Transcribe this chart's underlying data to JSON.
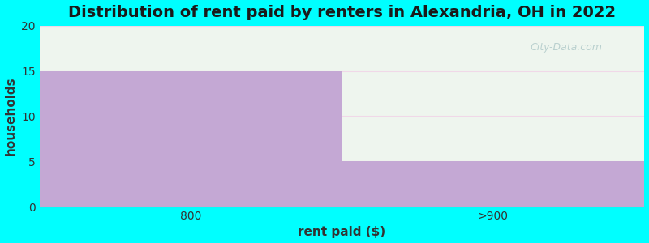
{
  "categories": [
    "800",
    ">900"
  ],
  "values": [
    15,
    5
  ],
  "bar_color": "#c4a8d4",
  "title": "Distribution of rent paid by renters in Alexandria, OH in 2022",
  "xlabel": "rent paid ($)",
  "ylabel": "households",
  "ylim": [
    0,
    20
  ],
  "yticks": [
    0,
    5,
    10,
    15,
    20
  ],
  "figure_bg_color": "#00FFFF",
  "plot_bg_color": "#eef5ee",
  "title_fontsize": 14,
  "axis_label_fontsize": 11,
  "tick_fontsize": 10,
  "watermark_text": "City-Data.com",
  "grid_color": "#e8d8f0",
  "bar_edge_color": "none"
}
